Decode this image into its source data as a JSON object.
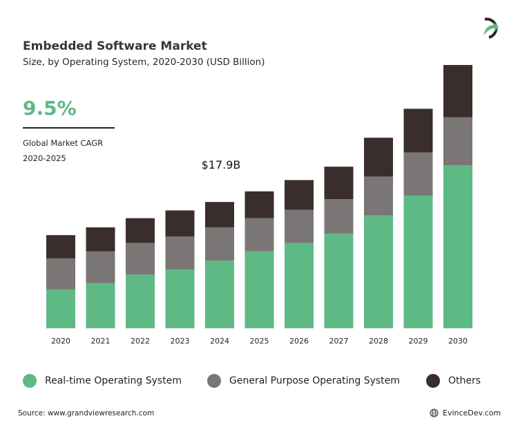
{
  "header": {
    "title": "Embedded Software Market",
    "subtitle": "Size, by Operating System, 2020-2030 (USD Billion)"
  },
  "highlight": {
    "cagr": "9.5%",
    "cagr_label": "Global Market CAGR",
    "cagr_period": "2020-2025"
  },
  "footer": {
    "source": "Source: www.grandviewresearch.com",
    "brand": "EvinceDev.com"
  },
  "logo_icon": "evincedev-logo",
  "chart_data": {
    "type": "bar",
    "stacked": true,
    "title": "Embedded Software Market",
    "subtitle": "Size, by Operating System, 2020-2030 (USD Billion)",
    "categories": [
      "2020",
      "2021",
      "2022",
      "2023",
      "2024",
      "2025",
      "2026",
      "2027",
      "2028",
      "2029",
      "2030"
    ],
    "series": [
      {
        "name": "Real-time Operating System",
        "color": "#5fb985",
        "values": [
          5.5,
          6.4,
          7.6,
          8.3,
          9.6,
          10.9,
          12.1,
          13.4,
          16.0,
          18.8,
          23.1
        ]
      },
      {
        "name": "General Purpose Operating System",
        "color": "#7a7675",
        "values": [
          4.4,
          4.5,
          4.5,
          4.7,
          4.7,
          4.7,
          4.7,
          4.9,
          5.5,
          6.1,
          6.8
        ]
      },
      {
        "name": "Others",
        "color": "#3a2e2c",
        "values": [
          3.3,
          3.4,
          3.5,
          3.7,
          3.6,
          3.8,
          4.2,
          4.6,
          5.5,
          6.2,
          7.4
        ]
      }
    ],
    "annotations": [
      {
        "category": "2024",
        "text": "$17.9B"
      }
    ],
    "ylim": [
      0,
      37.5
    ],
    "grid": false,
    "y_axis_shown": false,
    "legend": "bottom"
  }
}
